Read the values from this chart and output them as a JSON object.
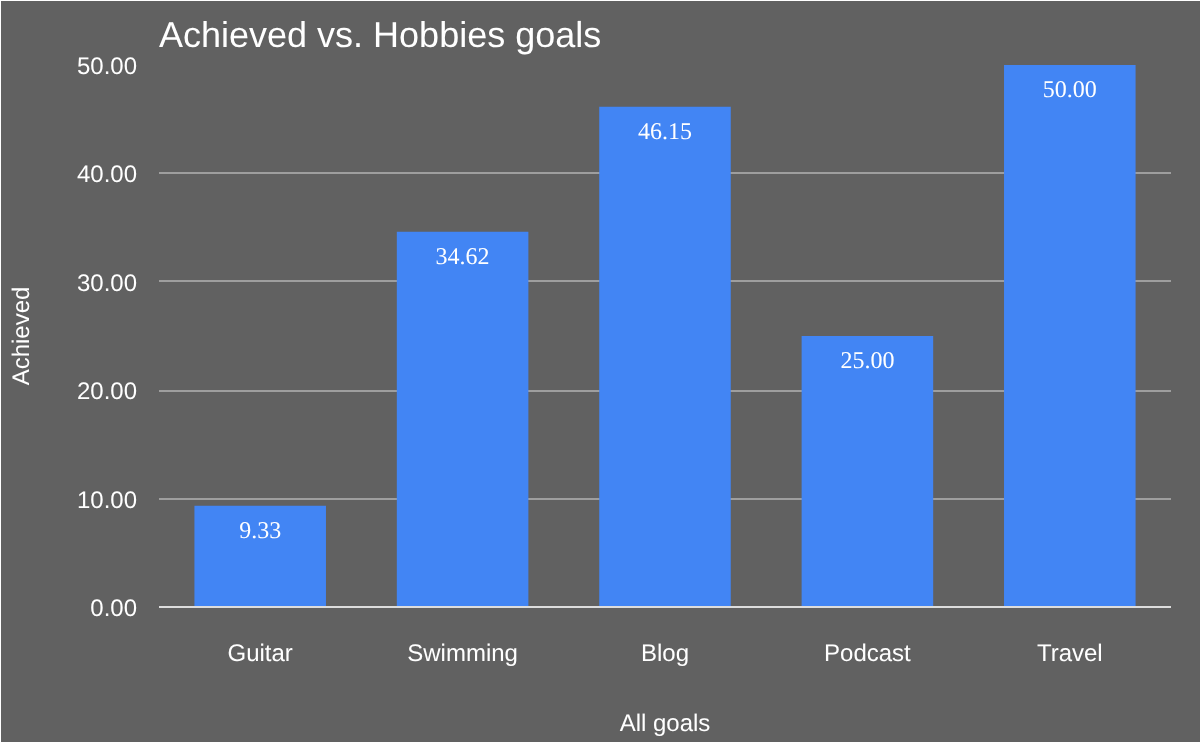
{
  "chart_data": {
    "type": "bar",
    "title": "Achieved vs. Hobbies goals",
    "xlabel": "All goals",
    "ylabel": "Achieved",
    "categories": [
      "Guitar",
      "Swimming",
      "Blog",
      "Podcast",
      "Travel"
    ],
    "values": [
      9.33,
      34.62,
      46.15,
      25.0,
      50.0
    ],
    "color": "#4285f4",
    "value_labels": [
      "9.33",
      "34.62",
      "46.15",
      "25.00",
      "50.00"
    ],
    "ylim": [
      0,
      50
    ],
    "yticks": [
      {
        "value": 0,
        "label": "0.00"
      },
      {
        "value": 10,
        "label": "10.00"
      },
      {
        "value": 20,
        "label": "20.00"
      },
      {
        "value": 30,
        "label": "30.00"
      },
      {
        "value": 40,
        "label": "40.00"
      },
      {
        "value": 50,
        "label": "50.00"
      }
    ],
    "grid": "y"
  }
}
